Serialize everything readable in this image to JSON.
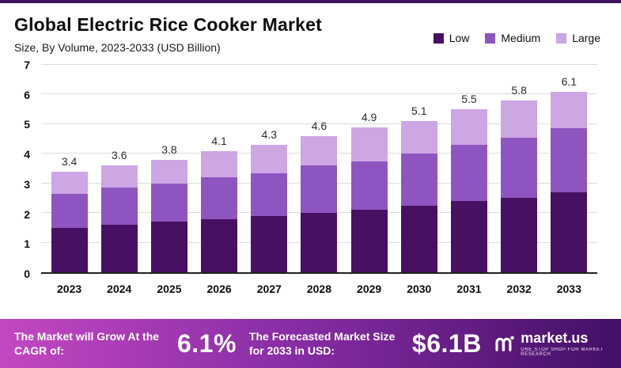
{
  "header": {
    "title": "Global Electric Rice Cooker Market",
    "subtitle": "Size, By Volume, 2023-2033 (USD Billion)"
  },
  "legend": [
    {
      "label": "Low",
      "color": "#471063"
    },
    {
      "label": "Medium",
      "color": "#8e55c0"
    },
    {
      "label": "Large",
      "color": "#cda6e4"
    }
  ],
  "chart_data": {
    "type": "bar",
    "stacked": true,
    "title": "Global Electric Rice Cooker Market Size, By Volume, 2023-2033 (USD Billion)",
    "categories": [
      "2023",
      "2024",
      "2025",
      "2026",
      "2027",
      "2028",
      "2029",
      "2030",
      "2031",
      "2032",
      "2033"
    ],
    "series": [
      {
        "name": "Low",
        "color": "#471063",
        "values": [
          1.5,
          1.6,
          1.7,
          1.8,
          1.9,
          2.0,
          2.1,
          2.25,
          2.4,
          2.5,
          2.7
        ]
      },
      {
        "name": "Medium",
        "color": "#8e55c0",
        "values": [
          1.15,
          1.25,
          1.3,
          1.4,
          1.45,
          1.6,
          1.65,
          1.75,
          1.9,
          2.05,
          2.15
        ]
      },
      {
        "name": "Large",
        "color": "#cda6e4",
        "values": [
          0.75,
          0.75,
          0.8,
          0.9,
          0.95,
          1.0,
          1.15,
          1.1,
          1.2,
          1.25,
          1.25
        ]
      }
    ],
    "totals": [
      "3.4",
      "3.6",
      "3.8",
      "4.1",
      "4.3",
      "4.6",
      "4.9",
      "5.1",
      "5.5",
      "5.8",
      "6.1"
    ],
    "ylim": [
      0,
      7
    ],
    "yticks": [
      0,
      1,
      2,
      3,
      4,
      5,
      6,
      7
    ],
    "grid": true,
    "legend_position": "top-right",
    "xlabel": "",
    "ylabel": ""
  },
  "footer": {
    "cagr_label": "The Market will Grow At the CAGR of:",
    "cagr_value": "6.1%",
    "forecast_label": "The Forecasted Market Size for 2033 in USD:",
    "forecast_value": "$6.1B",
    "brand": "market.us",
    "brand_tagline": "ONE STOP SHOP FOR MARKET RESEARCH"
  }
}
